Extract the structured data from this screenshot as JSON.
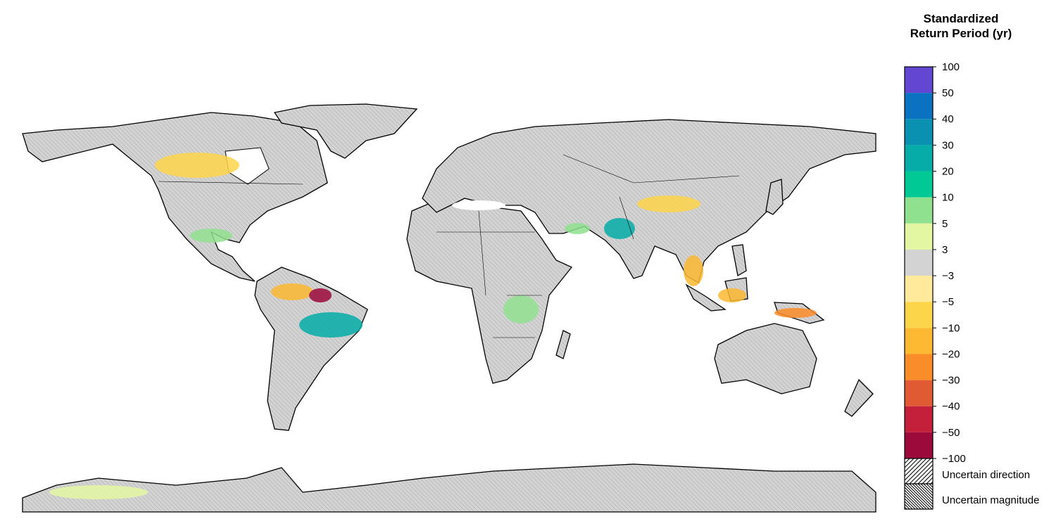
{
  "legend": {
    "title": "Standardized Return Period (yr)",
    "ticks": [
      100,
      50,
      40,
      30,
      20,
      10,
      5,
      3,
      {
        "value": -3,
        "label": "−3"
      },
      {
        "value": -5,
        "label": "−5"
      },
      {
        "value": -10,
        "label": "−10"
      },
      {
        "value": -20,
        "label": "−20"
      },
      {
        "value": -30,
        "label": "−30"
      },
      {
        "value": -40,
        "label": "−40"
      },
      {
        "value": -50,
        "label": "−50"
      },
      {
        "value": -100,
        "label": "−100"
      }
    ],
    "colors": [
      "#6347d2",
      "#0a72c0",
      "#0a90b0",
      "#06ada8",
      "#00c995",
      "#90e18f",
      "#e3f7a2",
      "#d3d3d3",
      "#ffea9c",
      "#fdd54a",
      "#fdb932",
      "#fb8c2a",
      "#e05a34",
      "#c4203c",
      "#9c0a3c"
    ],
    "hatch_labels": [
      "Uncertain direction",
      "Uncertain magnitude"
    ]
  }
}
